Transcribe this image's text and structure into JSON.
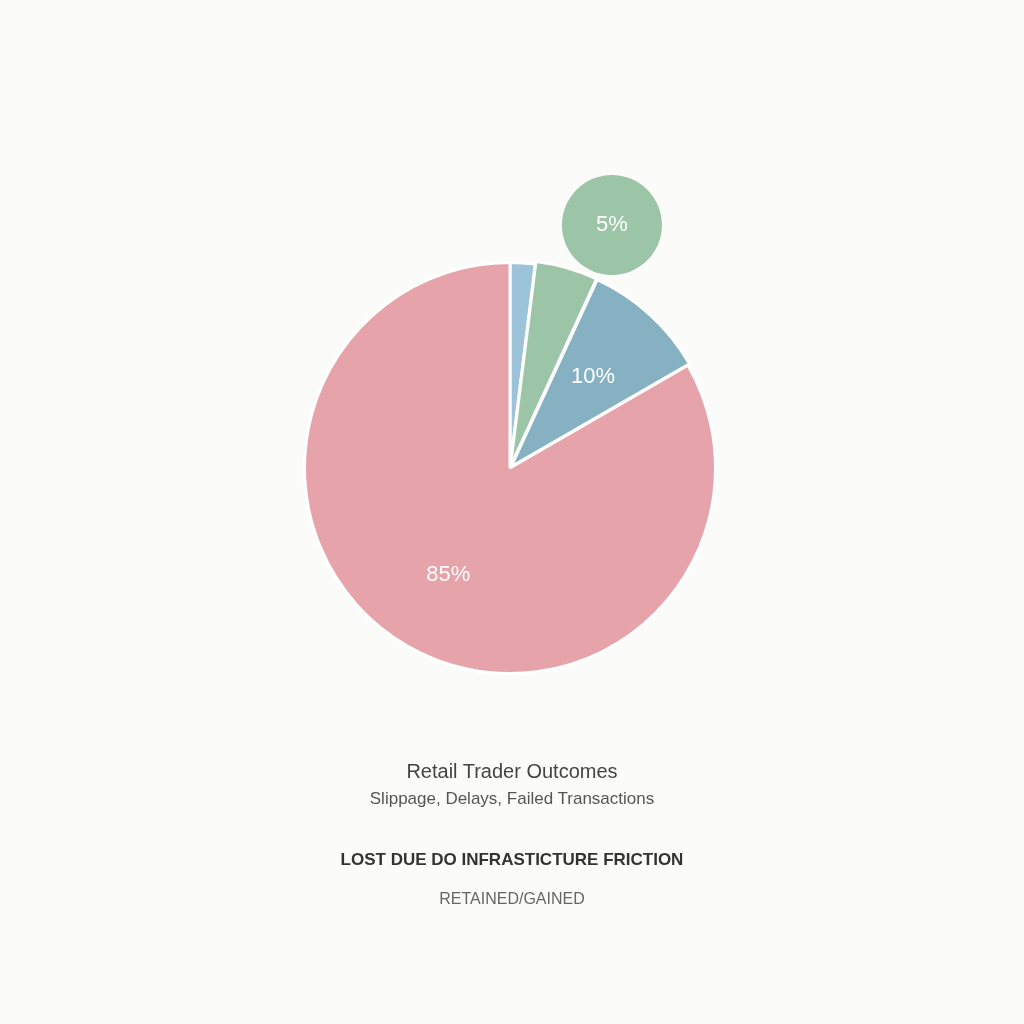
{
  "chart_data": {
    "type": "pie",
    "title": "Retail Trader Outcomes",
    "subtitle": "Slippage, Delays, Failed Transactions",
    "categories": [
      null,
      null,
      null,
      null
    ],
    "values": [
      2,
      5,
      10,
      85
    ],
    "colors": [
      "#9dc3db",
      "#9cc5a8",
      "#86b1c2",
      "#e6a3aa"
    ],
    "value_labels": [
      null,
      "5%",
      "10%",
      "85%"
    ],
    "annotations": [
      "LOST DUE DO INFRASTICTURE FRICTION",
      "RETAINED/GAINED"
    ]
  }
}
